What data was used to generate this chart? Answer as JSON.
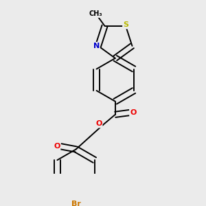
{
  "bg_color": "#ebebeb",
  "bond_color": "#000000",
  "bond_width": 1.4,
  "atom_colors": {
    "S": "#b8b800",
    "N": "#0000cc",
    "O": "#ee0000",
    "Br": "#cc7700",
    "C": "#000000"
  }
}
